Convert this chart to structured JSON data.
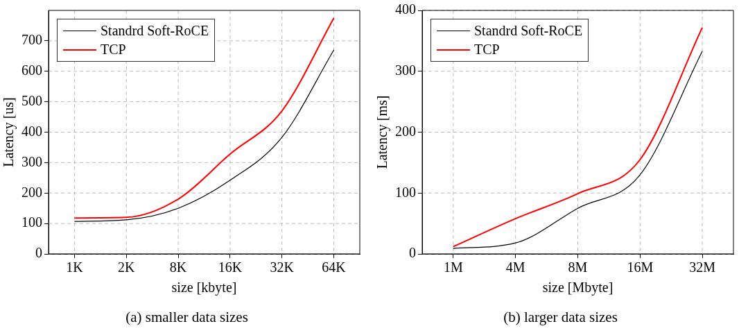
{
  "chart_data": [
    {
      "type": "line",
      "xlabel": "size [kbyte]",
      "ylabel": "Latency [us]",
      "categories": [
        "1K",
        "2K",
        "8K",
        "16K",
        "32K",
        "64K"
      ],
      "series": [
        {
          "name": "Standrd Soft-RoCE",
          "color": "#000000",
          "values": [
            107,
            112,
            150,
            242,
            383,
            670
          ]
        },
        {
          "name": "TCP",
          "color": "#ff0000",
          "values": [
            118,
            120,
            180,
            328,
            470,
            775
          ]
        }
      ],
      "ylim": [
        0,
        800
      ],
      "yticks": [
        0,
        100,
        200,
        300,
        400,
        500,
        600,
        700
      ],
      "grid": true,
      "legend": "top left",
      "marker": "none",
      "line_style": "solid",
      "annotations": [
        "(a) smaller data sizes"
      ]
    },
    {
      "type": "line",
      "xlabel": "size [Mbyte]",
      "ylabel": "Latency [ms]",
      "categories": [
        "1M",
        "4M",
        "8M",
        "16M",
        "32M"
      ],
      "series": [
        {
          "name": "Standrd Soft-RoCE",
          "color": "#000000",
          "values": [
            9,
            18,
            75,
            130,
            333
          ]
        },
        {
          "name": "TCP",
          "color": "#ff0000",
          "values": [
            12,
            58,
            99,
            155,
            372
          ]
        }
      ],
      "ylim": [
        0,
        400
      ],
      "yticks": [
        0,
        100,
        200,
        300,
        400
      ],
      "grid": true,
      "legend": "top left",
      "marker": "none",
      "line_style": "solid",
      "annotations": [
        "(b) larger data sizes"
      ]
    }
  ]
}
